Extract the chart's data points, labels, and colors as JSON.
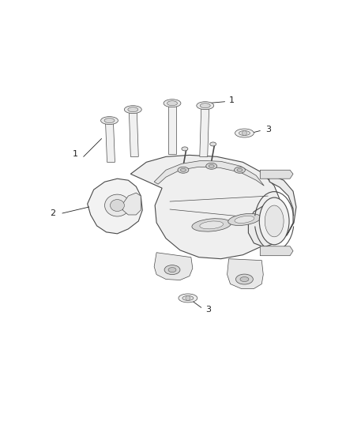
{
  "background_color": "#ffffff",
  "line_color": "#4a4a4a",
  "text_color": "#222222",
  "figsize": [
    4.38,
    5.33
  ],
  "dpi": 100,
  "xlim": [
    0,
    438
  ],
  "ylim": [
    0,
    533
  ]
}
